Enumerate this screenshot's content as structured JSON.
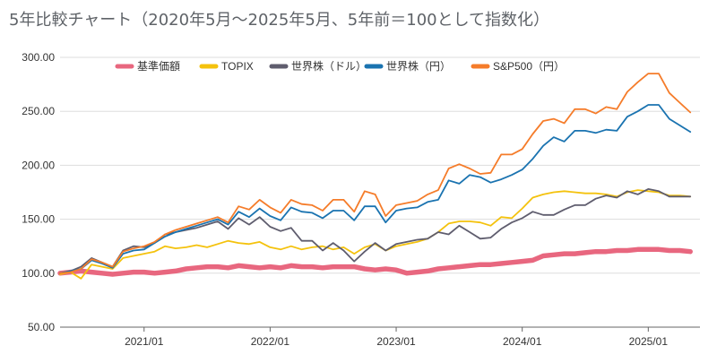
{
  "chart_data": {
    "type": "line",
    "title": "5年比較チャート（2020年5月〜2025年5月、5年前＝100として指数化）",
    "xlabel": "",
    "ylabel": "",
    "ylim": [
      50,
      300
    ],
    "y_ticks": [
      "50.00",
      "100.00",
      "150.00",
      "200.00",
      "250.00",
      "300.00"
    ],
    "x_ticks": [
      "2021/01",
      "2022/01",
      "2023/01",
      "2024/01",
      "2025/01"
    ],
    "x_start": "2020/05",
    "grid": "horizontal",
    "legend_position": "top",
    "series": [
      {
        "name": "基準価額",
        "color": "#e8677f",
        "width": 5.5,
        "values": [
          100,
          101,
          102,
          101,
          100,
          99,
          100,
          101,
          101,
          100,
          101,
          102,
          104,
          105,
          106,
          106,
          105,
          107,
          106,
          105,
          106,
          105,
          107,
          106,
          106,
          105,
          106,
          106,
          106,
          104,
          103,
          104,
          103,
          100,
          101,
          102,
          104,
          105,
          106,
          107,
          108,
          108,
          109,
          110,
          111,
          112,
          116,
          117,
          118,
          118,
          119,
          120,
          120,
          121,
          121,
          122,
          122,
          122,
          121,
          121,
          120
        ]
      },
      {
        "name": "TOPIX",
        "color": "#f4c20d",
        "width": 1.8,
        "values": [
          99,
          101,
          95,
          108,
          106,
          104,
          114,
          116,
          118,
          120,
          125,
          123,
          124,
          126,
          124,
          127,
          130,
          128,
          127,
          129,
          124,
          122,
          125,
          122,
          124,
          125,
          122,
          124,
          118,
          124,
          127,
          121,
          125,
          127,
          129,
          132,
          138,
          146,
          148,
          148,
          147,
          144,
          152,
          151,
          160,
          170,
          173,
          175,
          176,
          175,
          174,
          174,
          173,
          171,
          175,
          177,
          176,
          175,
          172,
          172,
          171
        ]
      },
      {
        "name": "世界株（ドル）",
        "color": "#5f5d6e",
        "width": 1.8,
        "values": [
          100,
          102,
          106,
          114,
          110,
          106,
          121,
          125,
          124,
          128,
          136,
          138,
          140,
          142,
          145,
          148,
          141,
          151,
          145,
          152,
          143,
          139,
          142,
          130,
          130,
          121,
          128,
          121,
          111,
          120,
          128,
          121,
          127,
          129,
          131,
          132,
          138,
          136,
          144,
          138,
          132,
          133,
          141,
          147,
          151,
          157,
          154,
          154,
          159,
          163,
          163,
          169,
          172,
          170,
          176,
          173,
          178,
          176,
          171,
          171,
          171
        ]
      },
      {
        "name": "世界株（円）",
        "color": "#1a73b0",
        "width": 1.8,
        "values": [
          100,
          102,
          104,
          112,
          109,
          105,
          118,
          121,
          122,
          128,
          134,
          138,
          141,
          144,
          147,
          150,
          145,
          157,
          152,
          160,
          153,
          149,
          161,
          157,
          156,
          151,
          158,
          158,
          149,
          162,
          162,
          147,
          158,
          160,
          161,
          166,
          168,
          186,
          183,
          191,
          189,
          184,
          187,
          191,
          196,
          206,
          218,
          226,
          222,
          232,
          232,
          230,
          233,
          232,
          245,
          250,
          256,
          256,
          243,
          237,
          231
        ]
      },
      {
        "name": "S&P500（円）",
        "color": "#f57c2a",
        "width": 1.8,
        "values": [
          100,
          101,
          104,
          113,
          110,
          106,
          120,
          123,
          125,
          129,
          136,
          140,
          143,
          146,
          149,
          152,
          147,
          162,
          159,
          168,
          161,
          156,
          168,
          164,
          163,
          158,
          168,
          168,
          157,
          176,
          173,
          153,
          163,
          165,
          167,
          173,
          177,
          197,
          201,
          197,
          192,
          193,
          210,
          210,
          215,
          229,
          241,
          243,
          239,
          252,
          252,
          248,
          254,
          252,
          268,
          277,
          285,
          285,
          267,
          258,
          249
        ]
      }
    ]
  }
}
